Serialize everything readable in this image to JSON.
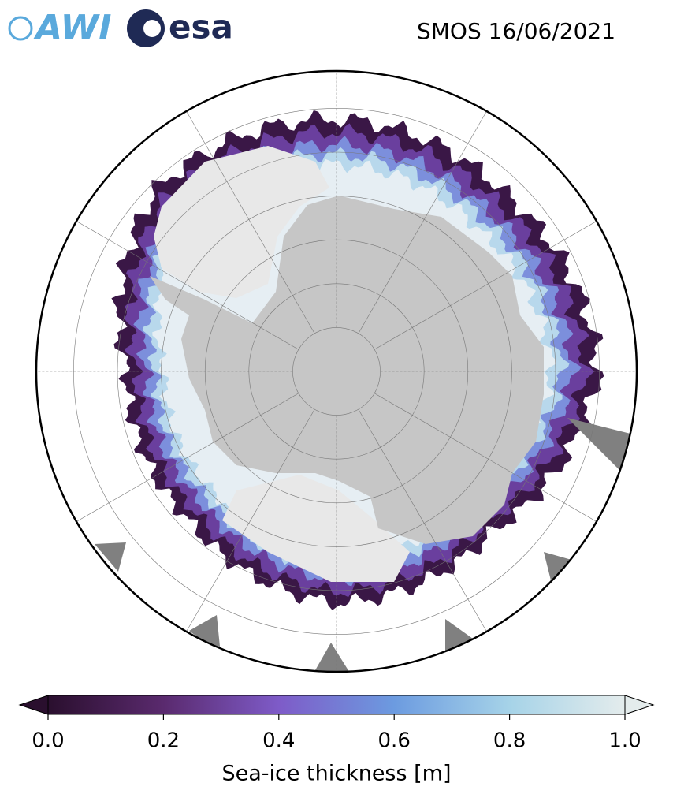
{
  "header": {
    "logos": [
      "AWI",
      "esa"
    ],
    "title": "SMOS 16/06/2021"
  },
  "colorbar": {
    "label": "Sea-ice thickness [m]",
    "lim": [
      0,
      1
    ],
    "ticks": [
      {
        "value": 0,
        "label": "0.0"
      },
      {
        "value": 0.2,
        "label": "0.2"
      },
      {
        "value": 0.4,
        "label": "0.4"
      },
      {
        "value": 0.6,
        "label": "0.6"
      },
      {
        "value": 0.8,
        "label": "0.8"
      },
      {
        "value": 1,
        "label": "1.0"
      }
    ],
    "colors": [
      "#2a0f2e",
      "#5a2a6e",
      "#7e5bc8",
      "#6c9be0",
      "#a6d3e8",
      "#e4ecec"
    ]
  }
}
